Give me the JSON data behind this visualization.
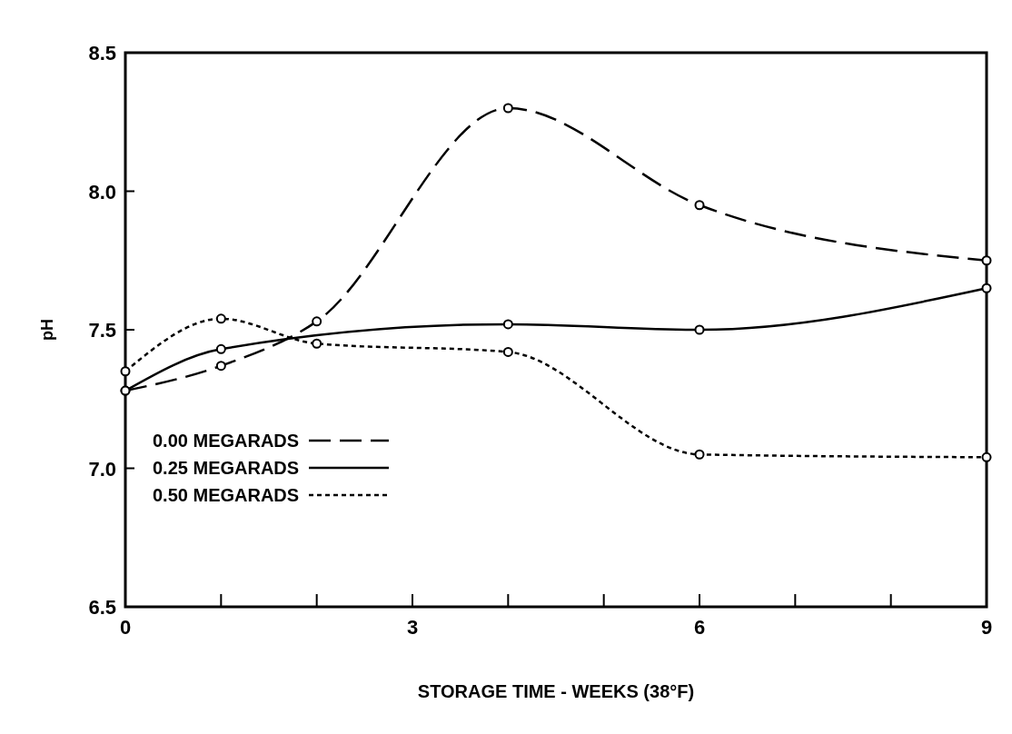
{
  "chart_data": {
    "type": "line",
    "xlabel": "STORAGE  TIME - WEEKS  (38°F)",
    "ylabel": "pH",
    "xlim": [
      0,
      9
    ],
    "ylim": [
      6.5,
      8.5
    ],
    "xticks": [
      0,
      {
        "value": 1,
        "label": null
      },
      {
        "value": 2,
        "label": null
      },
      3,
      {
        "value": 4,
        "label": null
      },
      {
        "value": 5,
        "label": null
      },
      6,
      {
        "value": 7,
        "label": null
      },
      {
        "value": 8,
        "label": null
      },
      9
    ],
    "yticks": [
      6.5,
      {
        "value": 7,
        "label": "7.0"
      },
      7.5,
      {
        "value": 8,
        "label": "8.0"
      },
      8.5
    ],
    "grid": false,
    "legend": "left",
    "marker": "circle",
    "series": [
      {
        "name": "0.00 MEGARADS",
        "color": "#000000",
        "line_style": "dashed",
        "x": [
          0,
          1,
          2,
          4,
          6,
          9
        ],
        "values": [
          7.28,
          7.37,
          7.53,
          8.3,
          7.95,
          7.75
        ]
      },
      {
        "name": "0.25 MEGARADS",
        "color": "#000000",
        "line_style": "solid",
        "x": [
          0,
          1,
          4,
          6,
          9
        ],
        "values": [
          7.28,
          7.43,
          7.52,
          7.5,
          7.65
        ]
      },
      {
        "name": "0.50 MEGARADS",
        "color": "#000000",
        "line_style": "dotted",
        "x": [
          0,
          1,
          2,
          4,
          6,
          9
        ],
        "values": [
          7.35,
          7.54,
          7.45,
          7.42,
          7.05,
          7.04
        ]
      }
    ]
  }
}
